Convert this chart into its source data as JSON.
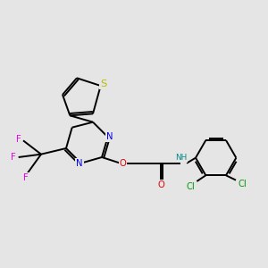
{
  "background_color": "#e5e5e5",
  "bond_color": "#000000",
  "bond_width": 1.4,
  "atom_colors": {
    "N": "#0000dd",
    "O": "#dd0000",
    "S": "#bbbb00",
    "F": "#ee00ee",
    "Cl": "#009900",
    "H": "#008888",
    "C": "#000000"
  },
  "font_size": 7.2
}
